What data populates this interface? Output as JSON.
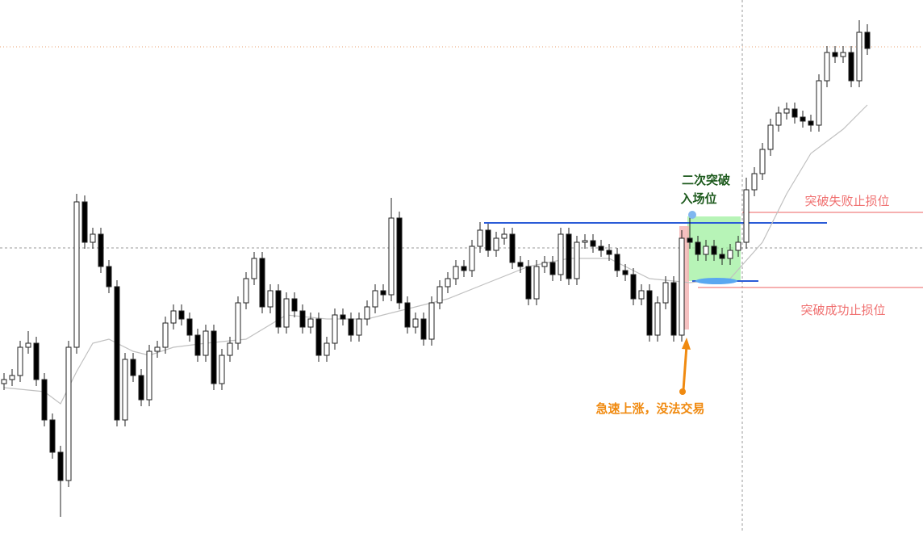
{
  "chart_data": {
    "type": "candlestick",
    "ylim": [
      0,
      660
    ],
    "up_color": "#ffffff",
    "down_color": "#000000",
    "edge_color": "#222222",
    "ma_color": "#c0c0c0",
    "open": [
      185,
      190,
      195,
      230,
      235,
      190,
      140,
      100,
      65,
      230,
      410,
      360,
      370,
      330,
      305,
      140,
      215,
      195,
      165,
      225,
      230,
      260,
      275,
      265,
      245,
      220,
      250,
      185,
      220,
      235,
      285,
      315,
      340,
      280,
      300,
      255,
      290,
      275,
      255,
      265,
      220,
      235,
      270,
      265,
      245,
      265,
      280,
      300,
      295,
      390,
      285,
      255,
      265,
      240,
      285,
      305,
      315,
      330,
      325,
      355,
      375,
      350,
      365,
      370,
      335,
      330,
      290,
      330,
      335,
      320,
      370,
      315,
      360,
      362,
      355,
      350,
      345,
      325,
      320,
      290,
      300,
      245,
      285,
      310,
      245,
      365,
      360,
      345,
      355,
      345,
      340,
      350,
      360,
      425,
      445,
      475,
      505,
      520,
      525,
      515,
      510,
      505,
      560,
      595,
      590,
      595,
      560,
      620
    ],
    "high": [
      198,
      203,
      238,
      250,
      243,
      198,
      148,
      108,
      238,
      420,
      418,
      378,
      378,
      338,
      313,
      223,
      223,
      203,
      233,
      238,
      268,
      283,
      283,
      273,
      253,
      258,
      258,
      228,
      243,
      293,
      323,
      348,
      348,
      308,
      308,
      298,
      298,
      283,
      273,
      273,
      243,
      278,
      278,
      273,
      273,
      288,
      308,
      308,
      415,
      398,
      293,
      273,
      273,
      293,
      313,
      323,
      338,
      338,
      363,
      385,
      383,
      373,
      378,
      378,
      343,
      338,
      338,
      343,
      343,
      378,
      378,
      368,
      370,
      370,
      363,
      358,
      353,
      333,
      328,
      308,
      308,
      293,
      318,
      318,
      375,
      395,
      368,
      363,
      363,
      353,
      358,
      368,
      440,
      453,
      483,
      513,
      528,
      533,
      533,
      523,
      518,
      568,
      603,
      603,
      603,
      603,
      635,
      630
    ],
    "low": [
      177,
      182,
      187,
      222,
      182,
      132,
      92,
      20,
      57,
      222,
      352,
      352,
      322,
      297,
      132,
      132,
      187,
      157,
      157,
      217,
      222,
      252,
      257,
      237,
      212,
      212,
      177,
      177,
      212,
      227,
      277,
      307,
      272,
      272,
      247,
      247,
      267,
      247,
      247,
      212,
      212,
      227,
      257,
      237,
      237,
      257,
      272,
      287,
      287,
      277,
      247,
      247,
      232,
      232,
      277,
      297,
      307,
      317,
      317,
      347,
      342,
      342,
      357,
      327,
      322,
      282,
      282,
      322,
      312,
      312,
      307,
      307,
      352,
      347,
      342,
      337,
      317,
      312,
      282,
      282,
      237,
      237,
      277,
      237,
      237,
      352,
      337,
      337,
      337,
      332,
      332,
      342,
      352,
      417,
      437,
      467,
      497,
      512,
      507,
      502,
      497,
      497,
      552,
      582,
      582,
      552,
      552,
      592
    ],
    "close": [
      190,
      195,
      230,
      235,
      190,
      140,
      100,
      65,
      230,
      410,
      360,
      370,
      330,
      305,
      140,
      215,
      195,
      165,
      225,
      230,
      260,
      275,
      265,
      245,
      220,
      250,
      185,
      220,
      235,
      285,
      315,
      340,
      280,
      300,
      255,
      290,
      275,
      255,
      265,
      220,
      235,
      270,
      265,
      245,
      265,
      280,
      300,
      295,
      390,
      285,
      255,
      265,
      240,
      285,
      305,
      315,
      330,
      325,
      355,
      375,
      350,
      365,
      370,
      335,
      330,
      290,
      330,
      335,
      320,
      370,
      315,
      360,
      362,
      355,
      350,
      345,
      325,
      320,
      290,
      300,
      245,
      285,
      310,
      245,
      365,
      360,
      345,
      355,
      345,
      340,
      350,
      360,
      425,
      445,
      475,
      505,
      520,
      525,
      515,
      510,
      505,
      560,
      595,
      590,
      595,
      560,
      620,
      600
    ],
    "ma_index": [
      0,
      5,
      7,
      9,
      11,
      13,
      16,
      18,
      21,
      25,
      30,
      35,
      40,
      45,
      49,
      51,
      55,
      60,
      65,
      70,
      75,
      80,
      85,
      90,
      94,
      97,
      100,
      104,
      107
    ],
    "ma": [
      180,
      175,
      160,
      200,
      235,
      240,
      225,
      220,
      230,
      235,
      240,
      270,
      265,
      265,
      275,
      280,
      290,
      310,
      330,
      340,
      340,
      315,
      310,
      315,
      360,
      420,
      470,
      500,
      530
    ],
    "levels": [
      {
        "value": 384,
        "color": "#2a5bd7"
      },
      {
        "value": 312,
        "color": "#2a5bd7"
      },
      {
        "value": 397,
        "color": "#f08080"
      },
      {
        "value": 304,
        "color": "#f08080"
      }
    ],
    "annotations": [
      "二次突破",
      "入场位",
      "突破失败止损位",
      "突破成功止损位",
      "急速上涨，没法交易"
    ]
  }
}
